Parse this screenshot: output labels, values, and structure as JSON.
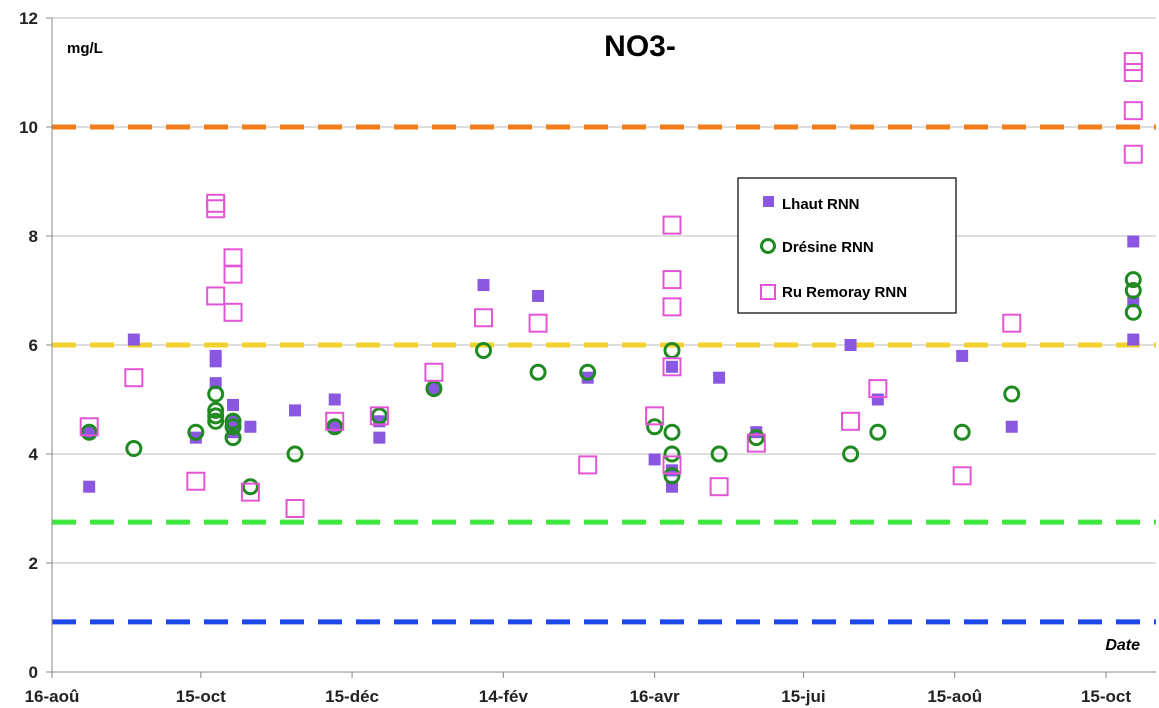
{
  "chart_data": {
    "type": "scatter",
    "title": "NO3-",
    "ylabel": "mg/L",
    "xlabel": "Date",
    "ylim": [
      0,
      12
    ],
    "xlim": [
      "2012-08-16",
      "2013-10-31"
    ],
    "y_ticks": [
      0,
      2,
      4,
      6,
      8,
      10,
      12
    ],
    "x_ticks": [
      {
        "label": "16-aoû",
        "date": "2012-08-16"
      },
      {
        "label": "15-oct",
        "date": "2012-10-15"
      },
      {
        "label": "15-déc",
        "date": "2012-12-15"
      },
      {
        "label": "14-fév",
        "date": "2013-02-14"
      },
      {
        "label": "16-avr",
        "date": "2013-04-16"
      },
      {
        "label": "15-jui",
        "date": "2013-06-15"
      },
      {
        "label": "15-aoû",
        "date": "2013-08-15"
      },
      {
        "label": "15-oct",
        "date": "2013-10-15"
      }
    ],
    "grid": "horizontal",
    "legend_position": "right",
    "reference_lines": [
      {
        "y": 10,
        "color": "#f07d19"
      },
      {
        "y": 6,
        "color": "#f2d22b"
      },
      {
        "y": 2.75,
        "color": "#3ee83e"
      },
      {
        "y": 0.92,
        "color": "#1e46e8"
      }
    ],
    "series": [
      {
        "name": "Lhaut RNN",
        "marker": "filled-square",
        "color": "#8a57e0",
        "points": [
          [
            "2012-08-31",
            3.4
          ],
          [
            "2012-08-31",
            4.4
          ],
          [
            "2012-09-18",
            6.1
          ],
          [
            "2012-10-13",
            4.3
          ],
          [
            "2012-10-21",
            5.8
          ],
          [
            "2012-10-21",
            5.7
          ],
          [
            "2012-10-21",
            5.3
          ],
          [
            "2012-10-28",
            4.9
          ],
          [
            "2012-10-28",
            4.6
          ],
          [
            "2012-10-28",
            4.4
          ],
          [
            "2012-11-04",
            4.5
          ],
          [
            "2012-11-22",
            4.8
          ],
          [
            "2012-12-08",
            5.0
          ],
          [
            "2012-12-08",
            4.5
          ],
          [
            "2012-12-26",
            4.3
          ],
          [
            "2012-12-26",
            4.6
          ],
          [
            "2013-01-17",
            5.2
          ],
          [
            "2013-02-06",
            7.1
          ],
          [
            "2013-02-28",
            6.9
          ],
          [
            "2013-03-20",
            5.4
          ],
          [
            "2013-04-16",
            3.9
          ],
          [
            "2013-04-23",
            5.6
          ],
          [
            "2013-04-23",
            3.4
          ],
          [
            "2013-04-23",
            3.7
          ],
          [
            "2013-05-12",
            5.4
          ],
          [
            "2013-05-27",
            4.4
          ],
          [
            "2013-07-04",
            6.0
          ],
          [
            "2013-07-15",
            5.0
          ],
          [
            "2013-08-18",
            5.8
          ],
          [
            "2013-09-07",
            4.5
          ],
          [
            "2013-10-26",
            7.9
          ],
          [
            "2013-10-26",
            6.8
          ],
          [
            "2013-10-26",
            6.1
          ]
        ]
      },
      {
        "name": "Drésine RNN",
        "marker": "open-circle",
        "color": "#1f8a1f",
        "points": [
          [
            "2012-08-31",
            4.4
          ],
          [
            "2012-09-18",
            4.1
          ],
          [
            "2012-10-13",
            4.4
          ],
          [
            "2012-10-21",
            5.1
          ],
          [
            "2012-10-21",
            4.8
          ],
          [
            "2012-10-21",
            4.7
          ],
          [
            "2012-10-21",
            4.6
          ],
          [
            "2012-10-28",
            4.6
          ],
          [
            "2012-10-28",
            4.5
          ],
          [
            "2012-10-28",
            4.3
          ],
          [
            "2012-11-04",
            3.4
          ],
          [
            "2012-11-22",
            4.0
          ],
          [
            "2012-12-08",
            4.5
          ],
          [
            "2012-12-26",
            4.7
          ],
          [
            "2013-01-17",
            5.2
          ],
          [
            "2013-02-06",
            5.9
          ],
          [
            "2013-02-28",
            5.5
          ],
          [
            "2013-03-20",
            5.5
          ],
          [
            "2013-04-16",
            4.5
          ],
          [
            "2013-04-23",
            5.9
          ],
          [
            "2013-04-23",
            4.4
          ],
          [
            "2013-04-23",
            4.0
          ],
          [
            "2013-04-23",
            3.6
          ],
          [
            "2013-05-12",
            4.0
          ],
          [
            "2013-05-27",
            4.3
          ],
          [
            "2013-07-04",
            4.0
          ],
          [
            "2013-07-15",
            4.4
          ],
          [
            "2013-08-18",
            4.4
          ],
          [
            "2013-09-07",
            5.1
          ],
          [
            "2013-10-26",
            7.2
          ],
          [
            "2013-10-26",
            7.0
          ],
          [
            "2013-10-26",
            6.6
          ]
        ]
      },
      {
        "name": "Ru Remoray RNN",
        "marker": "open-square",
        "color": "#e455d5",
        "points": [
          [
            "2012-08-31",
            4.5
          ],
          [
            "2012-09-18",
            5.4
          ],
          [
            "2012-10-13",
            3.5
          ],
          [
            "2012-10-21",
            8.6
          ],
          [
            "2012-10-21",
            8.5
          ],
          [
            "2012-10-21",
            6.9
          ],
          [
            "2012-10-28",
            7.6
          ],
          [
            "2012-10-28",
            7.3
          ],
          [
            "2012-10-28",
            6.6
          ],
          [
            "2012-11-04",
            3.3
          ],
          [
            "2012-11-22",
            3.0
          ],
          [
            "2012-12-08",
            4.6
          ],
          [
            "2012-12-26",
            4.7
          ],
          [
            "2013-01-17",
            5.5
          ],
          [
            "2013-02-06",
            6.5
          ],
          [
            "2013-02-28",
            6.4
          ],
          [
            "2013-03-20",
            3.8
          ],
          [
            "2013-04-16",
            4.7
          ],
          [
            "2013-04-23",
            8.2
          ],
          [
            "2013-04-23",
            7.2
          ],
          [
            "2013-04-23",
            6.7
          ],
          [
            "2013-04-23",
            5.6
          ],
          [
            "2013-04-23",
            3.8
          ],
          [
            "2013-05-12",
            3.4
          ],
          [
            "2013-05-27",
            4.2
          ],
          [
            "2013-07-04",
            4.6
          ],
          [
            "2013-07-15",
            5.2
          ],
          [
            "2013-08-18",
            3.6
          ],
          [
            "2013-09-07",
            6.4
          ],
          [
            "2013-10-26",
            11.2
          ],
          [
            "2013-10-26",
            11.0
          ],
          [
            "2013-10-26",
            10.3
          ],
          [
            "2013-10-26",
            9.5
          ]
        ]
      }
    ]
  }
}
